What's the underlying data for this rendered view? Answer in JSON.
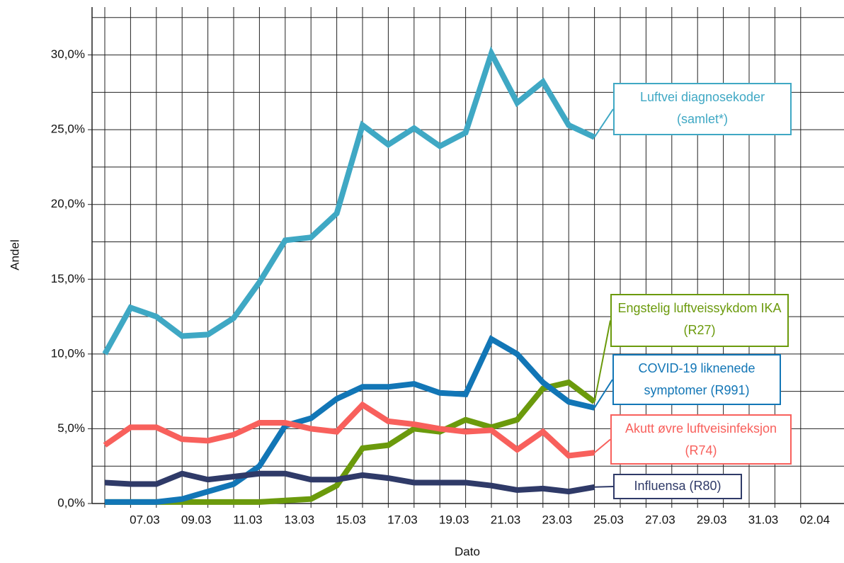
{
  "chart_data": {
    "type": "line",
    "x_label": "Dato",
    "y_label": "Andel",
    "categories": [
      null,
      "07.03",
      null,
      "09.03",
      null,
      "11.03",
      null,
      "13.03",
      null,
      "15.03",
      null,
      "17.03",
      null,
      "19.03",
      null,
      "21.03",
      null,
      "23.03",
      null,
      "25.03",
      null,
      "27.03",
      null,
      "29.03",
      null,
      "31.03",
      null,
      "02.04"
    ],
    "series": [
      {
        "name": "Luftvei diagnosekoder (samlet*)",
        "color": "#3fa8c4",
        "values": [
          10.0,
          13.1,
          12.5,
          11.2,
          11.3,
          12.4,
          14.8,
          17.6,
          17.8,
          19.4,
          25.3,
          24.0,
          25.1,
          23.9,
          24.8,
          30.1,
          26.8,
          28.2,
          25.3,
          24.5,
          null,
          null,
          null,
          null,
          null,
          null,
          null,
          null
        ]
      },
      {
        "name": "Engstelig luftveissykdom IKA (R27)",
        "color": "#6b9a0c",
        "values": [
          0.1,
          0.1,
          0.1,
          0.1,
          0.1,
          0.1,
          0.1,
          0.2,
          0.3,
          1.2,
          3.7,
          3.9,
          5.0,
          4.8,
          5.6,
          5.1,
          5.6,
          7.7,
          8.1,
          6.8,
          null,
          null,
          null,
          null,
          null,
          null,
          null,
          null
        ]
      },
      {
        "name": "COVID-19 liknenede symptomer (R991)",
        "color": "#1276b6",
        "values": [
          0.1,
          0.1,
          0.1,
          0.3,
          0.8,
          1.3,
          2.5,
          5.2,
          5.7,
          7.0,
          7.8,
          7.8,
          8.0,
          7.4,
          7.3,
          11.0,
          10.0,
          8.1,
          6.8,
          6.4,
          null,
          null,
          null,
          null,
          null,
          null,
          null,
          null
        ]
      },
      {
        "name": "Akutt øvre luftveisinfeksjon (R74)",
        "color": "#f8605c",
        "values": [
          3.9,
          5.1,
          5.1,
          4.3,
          4.2,
          4.6,
          5.4,
          5.4,
          5.0,
          4.8,
          6.6,
          5.5,
          5.3,
          5.0,
          4.8,
          4.9,
          3.6,
          4.8,
          3.2,
          3.4,
          null,
          null,
          null,
          null,
          null,
          null,
          null,
          null
        ]
      },
      {
        "name": "Influensa (R80)",
        "color": "#2f3a68",
        "values": [
          1.4,
          1.3,
          1.3,
          2.0,
          1.6,
          1.8,
          2.0,
          2.0,
          1.6,
          1.6,
          1.9,
          1.7,
          1.4,
          1.4,
          1.4,
          1.2,
          0.9,
          1.0,
          0.8,
          1.1,
          null,
          null,
          null,
          null,
          null,
          null,
          null,
          null
        ]
      }
    ],
    "ylim": [
      0,
      33.2
    ],
    "yticks": [
      {
        "value": 0,
        "label": "0,0%"
      },
      {
        "value": 5,
        "label": "5,0%"
      },
      {
        "value": 10,
        "label": "10,0%"
      },
      {
        "value": 15,
        "label": "15,0%"
      },
      {
        "value": 20,
        "label": "20,0%"
      },
      {
        "value": 25,
        "label": "25,0%"
      },
      {
        "value": 30,
        "label": "30,0%"
      }
    ],
    "minor_yticks": [
      2.5,
      7.5,
      12.5,
      17.5,
      22.5,
      27.5,
      32.5
    ],
    "grid": true
  }
}
